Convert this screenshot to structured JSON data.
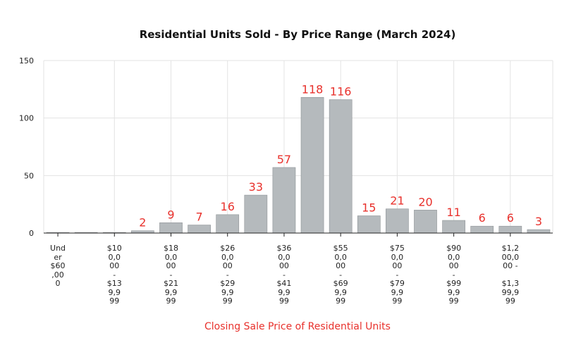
{
  "colors": {
    "bar": "#b5babd",
    "bar_stroke": "#8e9396",
    "label": "#e8312c",
    "grid": "#e3e3e3"
  },
  "chart_data": {
    "type": "bar",
    "title": "Residential Units Sold - By Price Range (March 2024)",
    "xlabel": "Closing Sale Price of Residential Units",
    "ylabel": "",
    "ylim": [
      0,
      150
    ],
    "yticks": [
      0,
      50,
      100,
      150
    ],
    "grid": true,
    "legend": "none",
    "categories": [
      "Under $600,000",
      "",
      "$100,000 - $139,999",
      "",
      "$180,000 - $219,999",
      "",
      "$260,000 - $299,999",
      "",
      "$360,000 - $419,999",
      "",
      "$550,000 - $699,999",
      "",
      "$750,000 - $799,999",
      "",
      "$900,000 - $999,999",
      "",
      "$1,200,000 - $1,399,999",
      ""
    ],
    "values": [
      0,
      0,
      0,
      2,
      9,
      7,
      16,
      33,
      57,
      118,
      116,
      15,
      21,
      20,
      11,
      6,
      6,
      3
    ],
    "data_labels": [
      "",
      "",
      "",
      "2",
      "9",
      "7",
      "16",
      "33",
      "57",
      "118",
      "116",
      "15",
      "21",
      "20",
      "11",
      "6",
      "6",
      "3"
    ],
    "tick_labels": [
      {
        "index": 0,
        "lines": [
          "Und",
          "er",
          "$60",
          ",00",
          "0"
        ]
      },
      {
        "index": 2,
        "lines": [
          "$10",
          "0,0",
          "00",
          "-",
          "$13",
          "9,9",
          "99"
        ]
      },
      {
        "index": 4,
        "lines": [
          "$18",
          "0,0",
          "00",
          "-",
          "$21",
          "9,9",
          "99"
        ]
      },
      {
        "index": 6,
        "lines": [
          "$26",
          "0,0",
          "00",
          "-",
          "$29",
          "9,9",
          "99"
        ]
      },
      {
        "index": 8,
        "lines": [
          "$36",
          "0,0",
          "00",
          "-",
          "$41",
          "9,9",
          "99"
        ]
      },
      {
        "index": 10,
        "lines": [
          "$55",
          "0,0",
          "00",
          "-",
          "$69",
          "9,9",
          "99"
        ]
      },
      {
        "index": 12,
        "lines": [
          "$75",
          "0,0",
          "00",
          "-",
          "$79",
          "9,9",
          "99"
        ]
      },
      {
        "index": 14,
        "lines": [
          "$90",
          "0,0",
          "00",
          "-",
          "$99",
          "9,9",
          "99"
        ]
      },
      {
        "index": 16,
        "lines": [
          "$1,2",
          "00,0",
          "00 -",
          "",
          "$1,3",
          "99,9",
          "99"
        ]
      }
    ]
  }
}
